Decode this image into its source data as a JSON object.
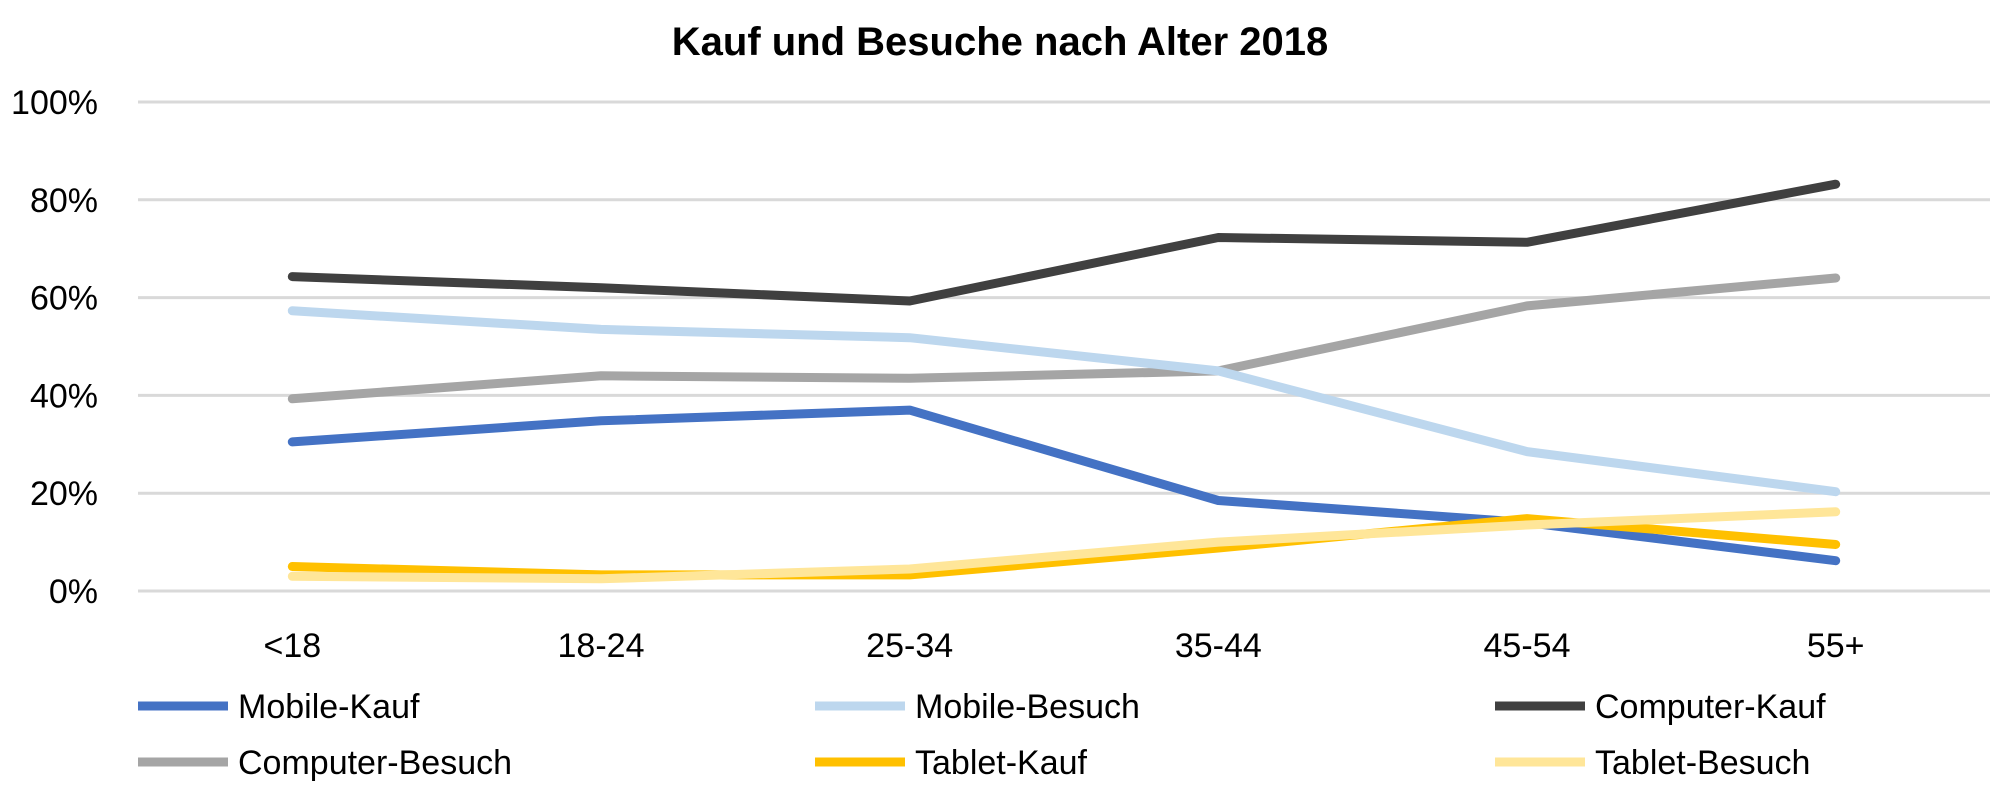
{
  "chart_data": {
    "type": "line",
    "title": "Kauf und Besuche nach Alter 2018",
    "xlabel": "",
    "ylabel": "",
    "categories": [
      "<18",
      "18-24",
      "25-34",
      "35-44",
      "45-54",
      "55+"
    ],
    "ylim": [
      0,
      100
    ],
    "y_ticks": [
      0,
      20,
      40,
      60,
      80,
      100
    ],
    "y_tick_labels": [
      "0%",
      "20%",
      "40%",
      "60%",
      "80%",
      "100%"
    ],
    "grid": true,
    "legend_position": "bottom",
    "series": [
      {
        "name": "Mobile-Kauf",
        "color": "#4472c4",
        "values": [
          30.5,
          34.8,
          37.0,
          18.5,
          14.0,
          6.2
        ]
      },
      {
        "name": "Mobile-Besuch",
        "color": "#bdd7ee",
        "values": [
          57.3,
          53.5,
          51.8,
          45.0,
          28.5,
          20.3
        ]
      },
      {
        "name": "Computer-Kauf",
        "color": "#404040",
        "values": [
          64.3,
          62.0,
          59.3,
          72.3,
          71.3,
          83.2
        ]
      },
      {
        "name": "Computer-Besuch",
        "color": "#a5a5a5",
        "values": [
          39.3,
          44.0,
          43.5,
          45.0,
          58.3,
          64.0
        ]
      },
      {
        "name": "Tablet-Kauf",
        "color": "#ffc000",
        "values": [
          5.0,
          3.3,
          3.3,
          8.8,
          14.8,
          9.5
        ]
      },
      {
        "name": "Tablet-Besuch",
        "color": "#ffe699",
        "values": [
          3.0,
          2.5,
          4.5,
          10.0,
          13.5,
          16.2
        ]
      }
    ]
  }
}
